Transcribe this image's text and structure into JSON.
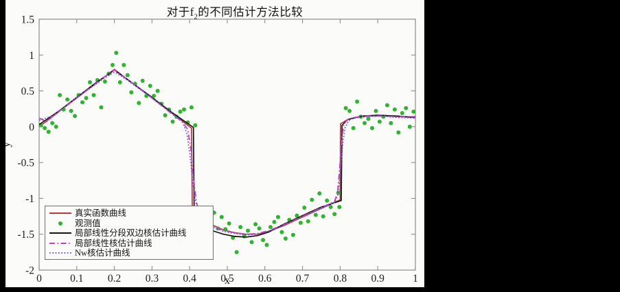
{
  "window": {
    "background": "#000000",
    "figure_background": "#fbfbfa"
  },
  "title": {
    "prefix": "对于f",
    "sub": "2",
    "suffix": "的不同估计方法比较",
    "full": "对于f2的不同估计方法比较"
  },
  "axes": {
    "xlabel": "x",
    "ylabel": "y",
    "xlim": [
      0,
      1
    ],
    "ylim": [
      -2,
      1.5
    ],
    "box_color": "#8c8c8c",
    "tick_label_color": "#1c1c1c",
    "xticks": [
      {
        "v": 0.0,
        "label": "0"
      },
      {
        "v": 0.1,
        "label": "0.1"
      },
      {
        "v": 0.2,
        "label": "0.2"
      },
      {
        "v": 0.3,
        "label": "0.3"
      },
      {
        "v": 0.4,
        "label": "0.4"
      },
      {
        "v": 0.5,
        "label": "0.5"
      },
      {
        "v": 0.6,
        "label": "0.6"
      },
      {
        "v": 0.7,
        "label": "0.7"
      },
      {
        "v": 0.8,
        "label": "0.8"
      },
      {
        "v": 0.9,
        "label": "0.9"
      },
      {
        "v": 1.0,
        "label": "1"
      }
    ],
    "yticks": [
      {
        "v": -2.0,
        "label": "-2"
      },
      {
        "v": -1.5,
        "label": "-1.5"
      },
      {
        "v": -1.0,
        "label": "-1"
      },
      {
        "v": -0.5,
        "label": "-0.5"
      },
      {
        "v": 0.0,
        "label": "0"
      },
      {
        "v": 0.5,
        "label": "0.5"
      },
      {
        "v": 1.0,
        "label": "1"
      },
      {
        "v": 1.5,
        "label": "1.5"
      }
    ]
  },
  "legend": {
    "position": "lower-left",
    "entries": [
      {
        "label": "真实函数曲线",
        "style": "solid",
        "color": "#c23535"
      },
      {
        "label": "观测值",
        "style": "scatter",
        "color": "#2db52d"
      },
      {
        "label": "局部线性分段双边核估计曲线",
        "style": "solid",
        "color": "#151515"
      },
      {
        "label": "局部线性核估计曲线",
        "style": "dashdot",
        "color": "#cc3dcc"
      },
      {
        "label": "Nw核估计曲线",
        "style": "dotted",
        "color": "#5c5cd8"
      }
    ]
  },
  "chart_data": {
    "type": "line",
    "title": "对于f2的不同估计方法比较",
    "xlabel": "x",
    "ylabel": "y",
    "xlim": [
      0,
      1
    ],
    "ylim": [
      -2,
      1.5
    ],
    "grid": false,
    "legend_position": "lower-left",
    "series": [
      {
        "name": "真实函数曲线",
        "key": "true-function",
        "style": "solid",
        "color": "#c23535",
        "width": 1.7,
        "points": [
          [
            0,
            0
          ],
          [
            0.05,
            0.2
          ],
          [
            0.1,
            0.4
          ],
          [
            0.15,
            0.6
          ],
          [
            0.2,
            0.8
          ],
          [
            0.25,
            0.6
          ],
          [
            0.3,
            0.4
          ],
          [
            0.35,
            0.2
          ],
          [
            0.405,
            -0.02
          ],
          [
            0.407,
            -1.1
          ],
          [
            0.43,
            -1.27
          ],
          [
            0.46,
            -1.37
          ],
          [
            0.49,
            -1.44
          ],
          [
            0.52,
            -1.48
          ],
          [
            0.55,
            -1.5
          ],
          [
            0.58,
            -1.5
          ],
          [
            0.61,
            -1.46
          ],
          [
            0.65,
            -1.38
          ],
          [
            0.7,
            -1.26
          ],
          [
            0.75,
            -1.14
          ],
          [
            0.8,
            -1.02
          ],
          [
            0.801,
            0.04
          ],
          [
            0.82,
            0.1
          ],
          [
            0.85,
            0.14
          ],
          [
            0.88,
            0.15
          ],
          [
            0.92,
            0.15
          ],
          [
            0.96,
            0.14
          ],
          [
            1.0,
            0.13
          ]
        ]
      },
      {
        "name": "观测值",
        "key": "observations",
        "style": "scatter",
        "color": "#2db52d",
        "x": [
          0.005,
          0.015,
          0.025,
          0.035,
          0.045,
          0.055,
          0.065,
          0.075,
          0.085,
          0.095,
          0.105,
          0.115,
          0.125,
          0.135,
          0.145,
          0.155,
          0.165,
          0.175,
          0.185,
          0.195,
          0.205,
          0.215,
          0.225,
          0.235,
          0.245,
          0.255,
          0.265,
          0.275,
          0.285,
          0.295,
          0.305,
          0.315,
          0.325,
          0.335,
          0.345,
          0.355,
          0.365,
          0.375,
          0.385,
          0.395,
          0.405,
          0.415,
          0.425,
          0.435,
          0.445,
          0.455,
          0.465,
          0.475,
          0.485,
          0.495,
          0.505,
          0.515,
          0.525,
          0.535,
          0.545,
          0.555,
          0.565,
          0.575,
          0.585,
          0.595,
          0.605,
          0.615,
          0.625,
          0.635,
          0.645,
          0.655,
          0.665,
          0.675,
          0.685,
          0.695,
          0.705,
          0.715,
          0.725,
          0.735,
          0.745,
          0.755,
          0.765,
          0.775,
          0.785,
          0.795,
          0.798,
          0.815,
          0.825,
          0.835,
          0.845,
          0.855,
          0.865,
          0.875,
          0.885,
          0.895,
          0.905,
          0.915,
          0.925,
          0.935,
          0.945,
          0.955,
          0.965,
          0.975,
          0.985,
          0.995
        ],
        "y": [
          0.02,
          -0.02,
          -0.07,
          0.05,
          0.0,
          0.44,
          0.24,
          0.38,
          0.22,
          0.15,
          0.44,
          0.34,
          0.4,
          0.62,
          0.44,
          0.65,
          0.27,
          0.63,
          0.74,
          0.86,
          1.03,
          0.62,
          0.86,
          0.72,
          0.48,
          0.6,
          0.33,
          0.64,
          0.43,
          0.57,
          0.43,
          0.5,
          0.32,
          0.16,
          0.24,
          0.07,
          0.14,
          0.21,
          0.24,
          0.06,
          0.27,
          0.02,
          -1.22,
          -1.15,
          -1.3,
          -1.37,
          -1.2,
          -1.42,
          -1.26,
          -1.43,
          -1.35,
          -1.55,
          -1.75,
          -1.4,
          -1.53,
          -1.45,
          -1.61,
          -1.36,
          -1.42,
          -1.58,
          -1.65,
          -1.4,
          -1.33,
          -1.26,
          -1.47,
          -1.56,
          -1.3,
          -1.51,
          -1.24,
          -1.34,
          -1.13,
          -1.32,
          -1.02,
          -1.23,
          -0.93,
          -1.25,
          -1.03,
          -1.12,
          -1.22,
          -0.92,
          -1.12,
          0.26,
          0.22,
          -0.02,
          0.35,
          0.14,
          0.05,
          0.11,
          -0.02,
          0.22,
          0.07,
          0.14,
          0.3,
          0.05,
          0.24,
          -0.08,
          0.19,
          0.26,
          0.0,
          0.21
        ]
      },
      {
        "name": "局部线性分段双边核估计曲线",
        "key": "piecewise-two-sided",
        "style": "solid",
        "color": "#151515",
        "width": 1.7,
        "points": [
          [
            0,
            0.03
          ],
          [
            0.05,
            0.21
          ],
          [
            0.1,
            0.41
          ],
          [
            0.15,
            0.61
          ],
          [
            0.2,
            0.79
          ],
          [
            0.25,
            0.6
          ],
          [
            0.3,
            0.41
          ],
          [
            0.35,
            0.21
          ],
          [
            0.41,
            -0.01
          ],
          [
            0.412,
            -1.2
          ],
          [
            0.43,
            -1.36
          ],
          [
            0.46,
            -1.45
          ],
          [
            0.49,
            -1.5
          ],
          [
            0.52,
            -1.53
          ],
          [
            0.55,
            -1.54
          ],
          [
            0.58,
            -1.52
          ],
          [
            0.61,
            -1.47
          ],
          [
            0.65,
            -1.36
          ],
          [
            0.7,
            -1.24
          ],
          [
            0.75,
            -1.12
          ],
          [
            0.803,
            -1.03
          ],
          [
            0.805,
            0.02
          ],
          [
            0.82,
            0.1
          ],
          [
            0.86,
            0.15
          ],
          [
            0.9,
            0.16
          ],
          [
            0.95,
            0.15
          ],
          [
            1.0,
            0.13
          ]
        ]
      },
      {
        "name": "局部线性核估计曲线",
        "key": "local-linear",
        "style": "dashdot",
        "color": "#cc3dcc",
        "width": 1.8,
        "points": [
          [
            0,
            0.12
          ],
          [
            0.02,
            0.07
          ],
          [
            0.05,
            0.21
          ],
          [
            0.1,
            0.4
          ],
          [
            0.15,
            0.6
          ],
          [
            0.19,
            0.76
          ],
          [
            0.2,
            0.79
          ],
          [
            0.21,
            0.76
          ],
          [
            0.25,
            0.6
          ],
          [
            0.3,
            0.4
          ],
          [
            0.35,
            0.19
          ],
          [
            0.38,
            0.07
          ],
          [
            0.395,
            -0.04
          ],
          [
            0.403,
            -0.3
          ],
          [
            0.41,
            -0.7
          ],
          [
            0.418,
            -1.05
          ],
          [
            0.427,
            -1.24
          ],
          [
            0.45,
            -1.35
          ],
          [
            0.49,
            -1.45
          ],
          [
            0.52,
            -1.48
          ],
          [
            0.55,
            -1.5
          ],
          [
            0.58,
            -1.49
          ],
          [
            0.61,
            -1.45
          ],
          [
            0.65,
            -1.37
          ],
          [
            0.7,
            -1.25
          ],
          [
            0.75,
            -1.13
          ],
          [
            0.785,
            -1.04
          ],
          [
            0.793,
            -0.92
          ],
          [
            0.799,
            -0.55
          ],
          [
            0.804,
            -0.18
          ],
          [
            0.81,
            0.03
          ],
          [
            0.818,
            0.09
          ],
          [
            0.83,
            0.12
          ],
          [
            0.86,
            0.15
          ],
          [
            0.9,
            0.15
          ],
          [
            0.95,
            0.14
          ],
          [
            1.0,
            0.14
          ]
        ]
      },
      {
        "name": "Nw核估计曲线",
        "key": "nw-kernel",
        "style": "dotted",
        "color": "#5c5cd8",
        "width": 1.7,
        "points": [
          [
            0,
            0.09
          ],
          [
            0.03,
            0.14
          ],
          [
            0.06,
            0.25
          ],
          [
            0.1,
            0.41
          ],
          [
            0.15,
            0.59
          ],
          [
            0.18,
            0.7
          ],
          [
            0.2,
            0.76
          ],
          [
            0.22,
            0.7
          ],
          [
            0.25,
            0.59
          ],
          [
            0.3,
            0.4
          ],
          [
            0.35,
            0.2
          ],
          [
            0.38,
            0.08
          ],
          [
            0.393,
            -0.1
          ],
          [
            0.401,
            -0.4
          ],
          [
            0.409,
            -0.8
          ],
          [
            0.417,
            -1.08
          ],
          [
            0.428,
            -1.27
          ],
          [
            0.45,
            -1.37
          ],
          [
            0.49,
            -1.46
          ],
          [
            0.52,
            -1.49
          ],
          [
            0.55,
            -1.51
          ],
          [
            0.58,
            -1.5
          ],
          [
            0.61,
            -1.46
          ],
          [
            0.65,
            -1.37
          ],
          [
            0.7,
            -1.26
          ],
          [
            0.75,
            -1.14
          ],
          [
            0.785,
            -1.06
          ],
          [
            0.794,
            -0.95
          ],
          [
            0.801,
            -0.6
          ],
          [
            0.807,
            -0.25
          ],
          [
            0.813,
            -0.02
          ],
          [
            0.822,
            0.08
          ],
          [
            0.835,
            0.12
          ],
          [
            0.87,
            0.14
          ],
          [
            0.91,
            0.15
          ],
          [
            0.95,
            0.13
          ],
          [
            1.0,
            0.12
          ]
        ]
      }
    ]
  }
}
